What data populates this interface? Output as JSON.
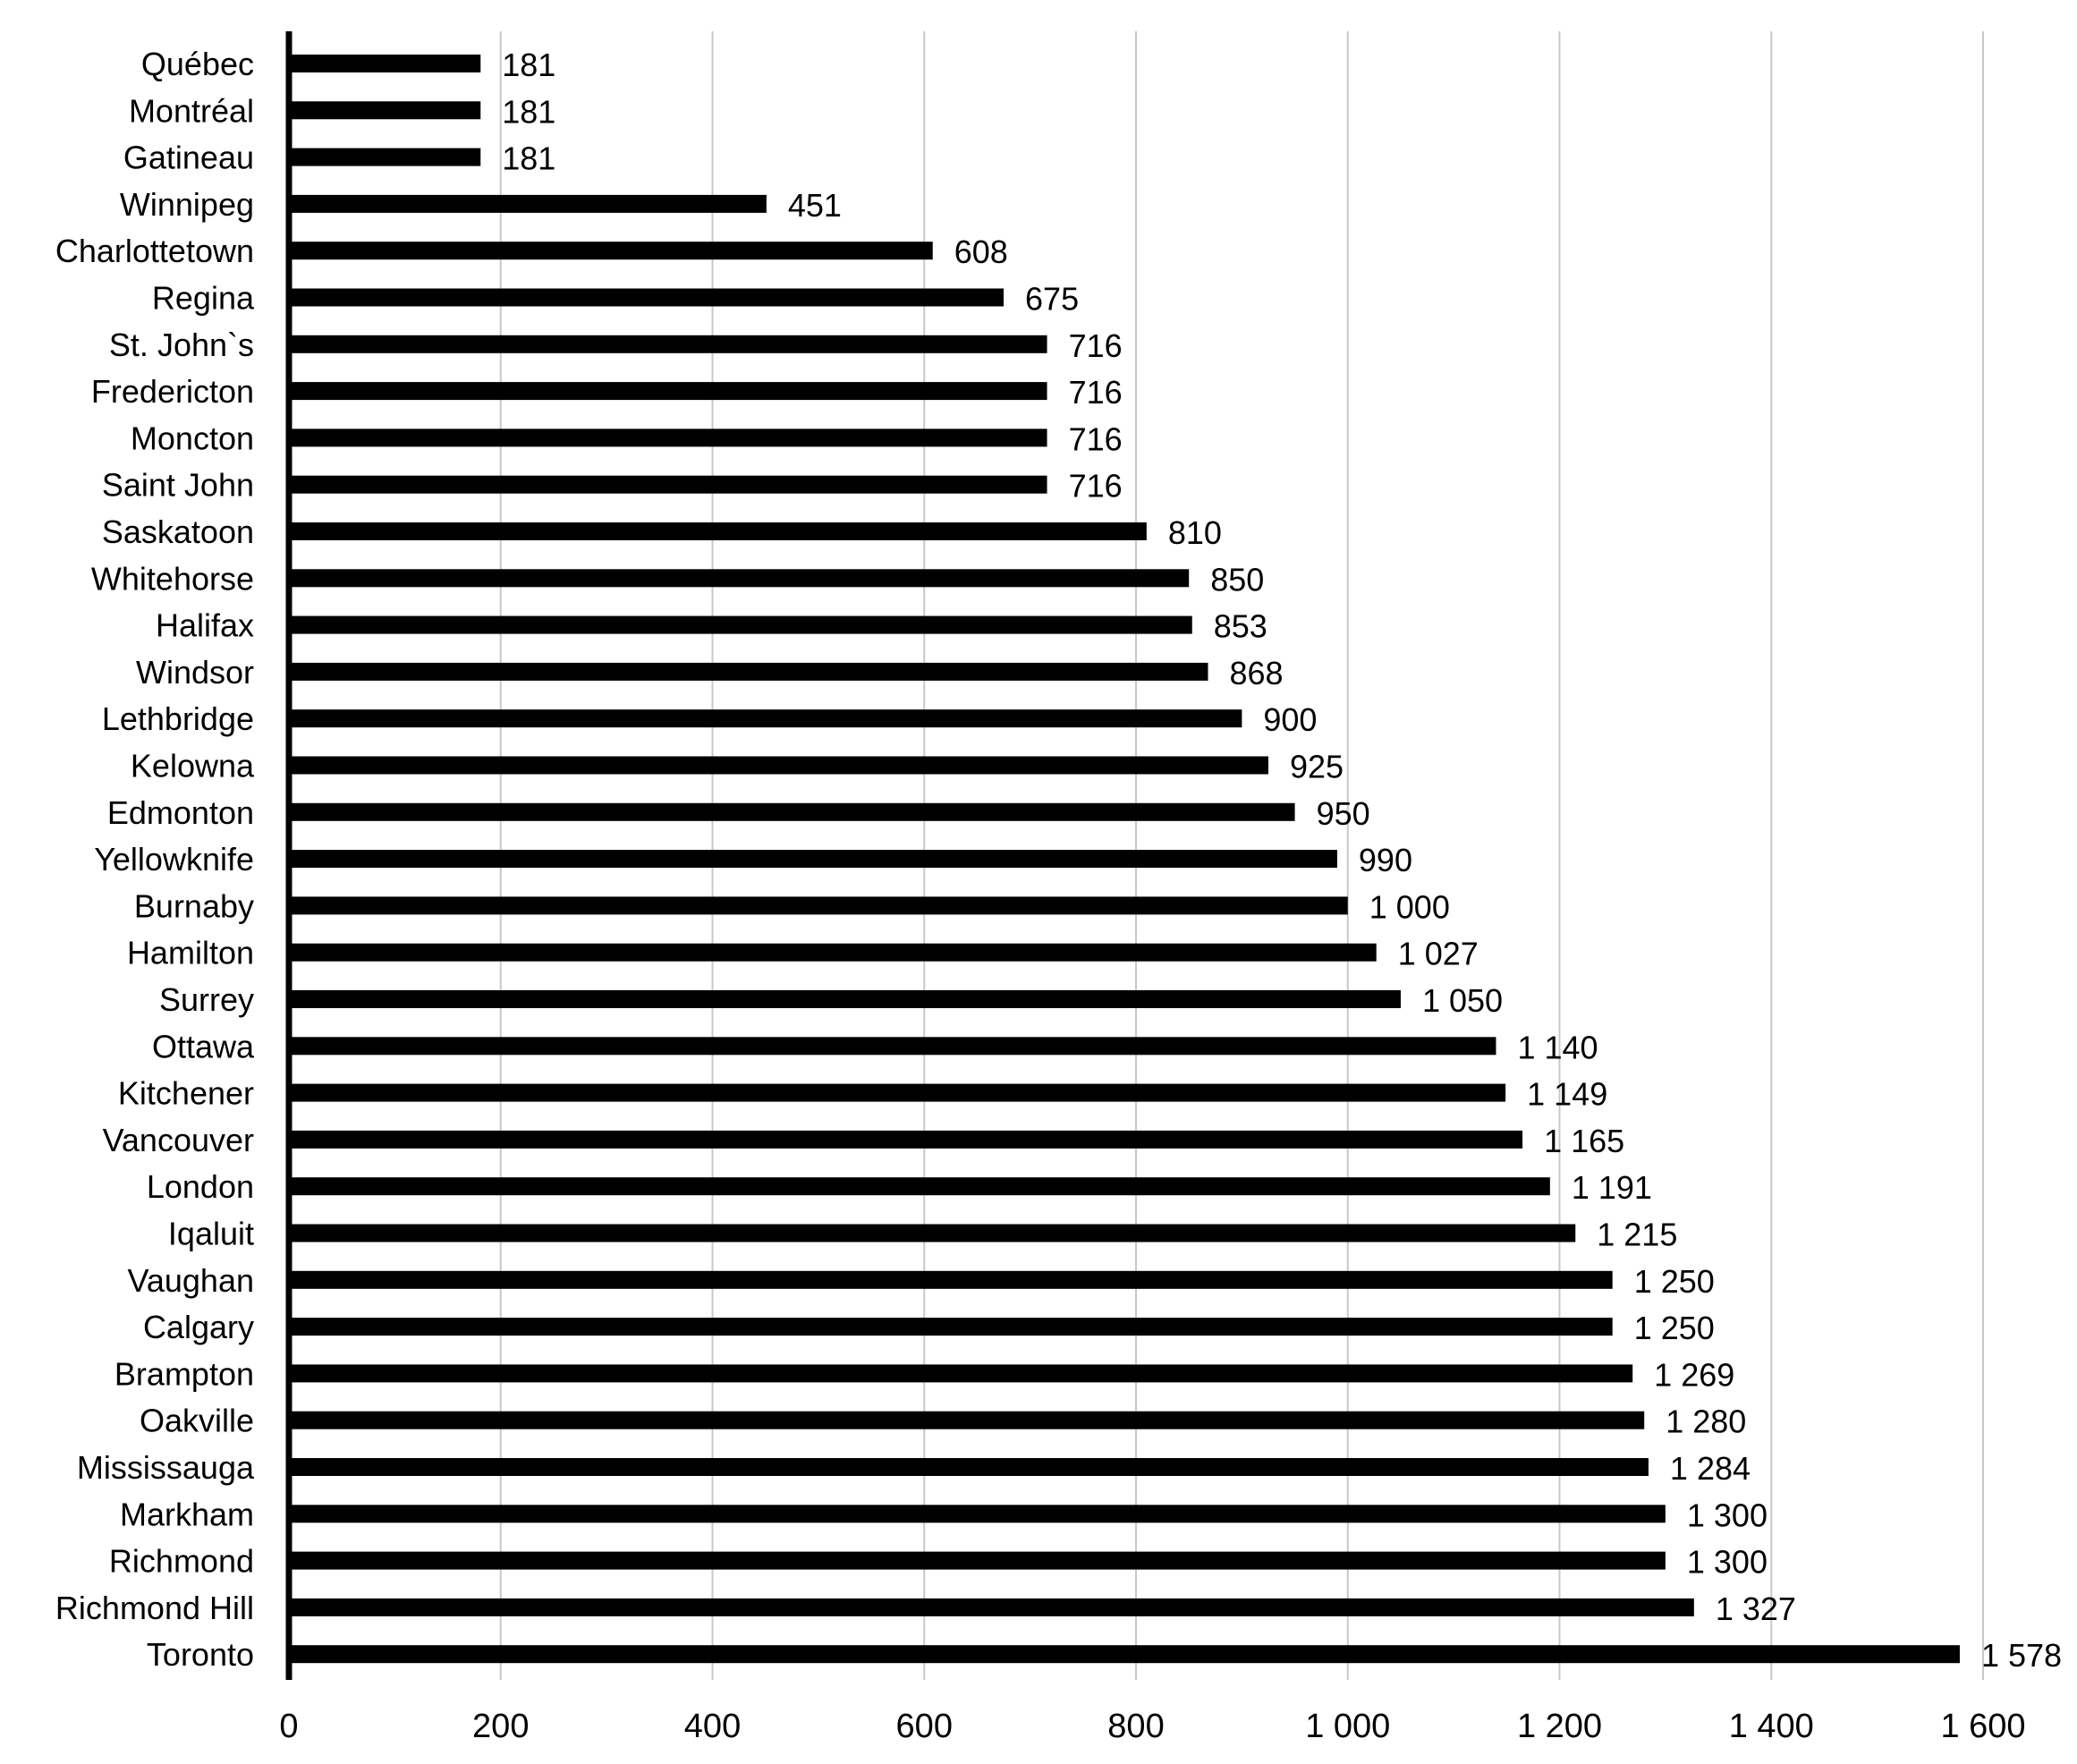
{
  "chart_data": {
    "type": "bar",
    "orientation": "horizontal",
    "categories": [
      "Québec",
      "Montréal",
      "Gatineau",
      "Winnipeg",
      "Charlottetown",
      "Regina",
      "St. John`s",
      "Fredericton",
      "Moncton",
      "Saint John",
      "Saskatoon",
      "Whitehorse",
      "Halifax",
      "Windsor",
      "Lethbridge",
      "Kelowna",
      "Edmonton",
      "Yellowknife",
      "Burnaby",
      "Hamilton",
      "Surrey",
      "Ottawa",
      "Kitchener",
      "Vancouver",
      "London",
      "Iqaluit",
      "Vaughan",
      "Calgary",
      "Brampton",
      "Oakville",
      "Mississauga",
      "Markham",
      "Richmond",
      "Richmond Hill",
      "Toronto"
    ],
    "values": [
      181,
      181,
      181,
      451,
      608,
      675,
      716,
      716,
      716,
      716,
      810,
      850,
      853,
      868,
      900,
      925,
      950,
      990,
      1000,
      1027,
      1050,
      1140,
      1149,
      1165,
      1191,
      1215,
      1250,
      1250,
      1269,
      1280,
      1284,
      1300,
      1300,
      1327,
      1578
    ],
    "value_labels": [
      "181",
      "181",
      "181",
      "451",
      "608",
      "675",
      "716",
      "716",
      "716",
      "716",
      "810",
      "850",
      "853",
      "868",
      "900",
      "925",
      "950",
      "990",
      "1 000",
      "1 027",
      "1 050",
      "1 140",
      "1 149",
      "1 165",
      "1 191",
      "1 215",
      "1 250",
      "1 250",
      "1 269",
      "1 280",
      "1 284",
      "1 300",
      "1 300",
      "1 327",
      "1 578"
    ],
    "xlim": [
      0,
      1600
    ],
    "xticks": [
      0,
      200,
      400,
      600,
      800,
      1000,
      1200,
      1400,
      1600
    ],
    "xtick_labels": [
      "0",
      "200",
      "400",
      "600",
      "800",
      "1 000",
      "1 200",
      "1 400",
      "1 600"
    ],
    "title": "",
    "xlabel": "",
    "ylabel": "",
    "grid": "vertical",
    "legend": "none",
    "colors": {
      "bar": "#000000",
      "grid": "#c8c8c8",
      "axis": "#000000",
      "background": "#ffffff"
    }
  }
}
